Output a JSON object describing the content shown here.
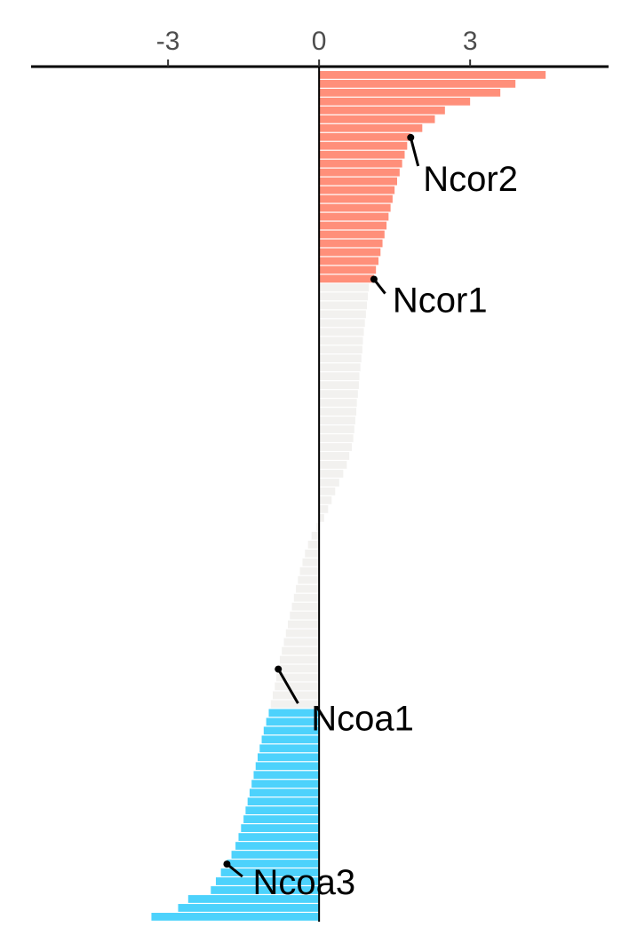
{
  "chart_data": {
    "type": "bar",
    "orientation": "horizontal",
    "xlim": [
      -5.72,
      5.75
    ],
    "xticks": [
      -3,
      0,
      3
    ],
    "series": [
      {
        "color": "#ff8f7a",
        "values": [
          4.5,
          3.9,
          3.6,
          3.0,
          2.5,
          2.3,
          2.05,
          1.82,
          1.75,
          1.7,
          1.65,
          1.6,
          1.55,
          1.5,
          1.46,
          1.42,
          1.38,
          1.34,
          1.3,
          1.26,
          1.22,
          1.18,
          1.13,
          1.09
        ]
      },
      {
        "color": "#f2f1ef",
        "values": [
          0.99,
          0.97,
          0.95,
          0.93,
          0.91,
          0.89,
          0.87,
          0.86,
          0.84,
          0.82,
          0.8,
          0.79,
          0.77,
          0.75,
          0.74,
          0.72,
          0.7,
          0.68,
          0.65,
          0.6,
          0.55,
          0.48,
          0.4,
          0.32,
          0.25,
          0.18,
          0.1,
          -0.05,
          -0.15,
          -0.22,
          -0.28,
          -0.33,
          -0.38,
          -0.42,
          -0.46,
          -0.5,
          -0.54,
          -0.58,
          -0.62,
          -0.66,
          -0.7,
          -0.74,
          -0.78,
          -0.81,
          -0.85,
          -0.88,
          -0.92,
          -0.96
        ]
      },
      {
        "color": "#4dd2fc",
        "values": [
          -1.0,
          -1.05,
          -1.1,
          -1.14,
          -1.18,
          -1.22,
          -1.26,
          -1.3,
          -1.34,
          -1.38,
          -1.42,
          -1.46,
          -1.5,
          -1.55,
          -1.6,
          -1.66,
          -1.74,
          -1.83,
          -1.95,
          -2.05,
          -2.15,
          -2.6,
          -2.8,
          -3.33
        ]
      }
    ],
    "annotations": [
      {
        "text": "Ncor2",
        "series": 0,
        "index": 7
      },
      {
        "text": "Ncor1",
        "series": 0,
        "index": 23
      },
      {
        "text": "Ncoa1",
        "series": 1,
        "index": 43
      },
      {
        "text": "Ncoa3",
        "series": 2,
        "index": 17
      }
    ]
  }
}
